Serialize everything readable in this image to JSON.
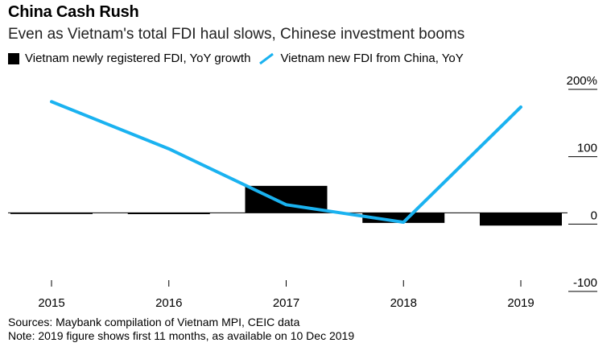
{
  "header": {
    "title": "China Cash Rush",
    "subtitle": "Even as Vietnam's total FDI haul slows, Chinese investment booms"
  },
  "legend": {
    "bar_label": "Vietnam newly registered FDI, YoY growth",
    "line_label": "Vietnam new FDI from China, YoY"
  },
  "footer": {
    "sources": "Sources: Maybank compilation of Vietnam MPI, CEIC data",
    "note": "Note: 2019 figure shows first 11 months, as available on 10 Dec 2019"
  },
  "colors": {
    "bar": "#000000",
    "line": "#1ab2f0",
    "axis": "#000000"
  },
  "chart_data": {
    "type": "bar+line",
    "categories": [
      "2015",
      "2016",
      "2017",
      "2018",
      "2019"
    ],
    "series": [
      {
        "name": "Vietnam newly registered FDI, YoY growth",
        "kind": "bar",
        "values": [
          -1,
          -2,
          40,
          -15,
          -19
        ]
      },
      {
        "name": "Vietnam new FDI from China, YoY",
        "kind": "line",
        "values": [
          165,
          95,
          12,
          -14,
          157
        ]
      }
    ],
    "y_ticks": [
      200,
      100,
      0,
      -100
    ],
    "y_tick_labels": [
      "200%",
      "100",
      "0",
      "-100"
    ],
    "ylim": [
      -100,
      200
    ],
    "y_axis_position": "right",
    "grid": false
  }
}
